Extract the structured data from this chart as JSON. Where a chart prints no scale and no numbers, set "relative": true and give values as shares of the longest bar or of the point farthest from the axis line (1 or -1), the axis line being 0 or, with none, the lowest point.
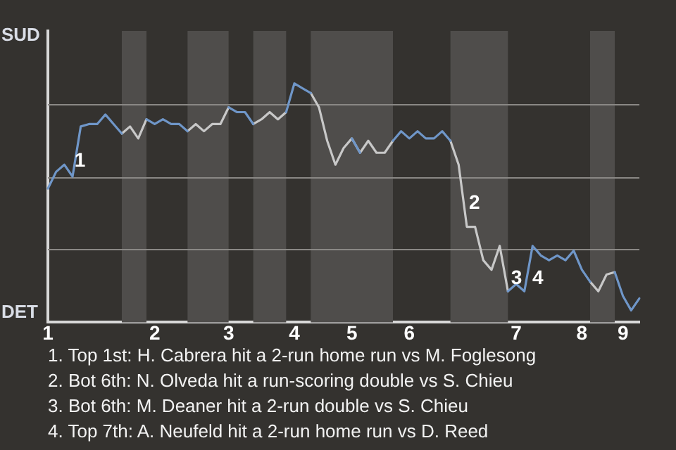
{
  "chart_data": {
    "type": "line",
    "relative": true,
    "categories": [
      "1",
      null,
      null,
      null,
      null,
      null,
      null,
      null,
      null,
      null,
      null,
      null,
      null,
      "2",
      null,
      null,
      null,
      null,
      null,
      null,
      null,
      null,
      "3",
      null,
      null,
      null,
      null,
      null,
      null,
      null,
      "4",
      null,
      null,
      null,
      null,
      null,
      null,
      "5",
      null,
      null,
      null,
      null,
      null,
      null,
      "6",
      null,
      null,
      null,
      null,
      null,
      null,
      null,
      null,
      null,
      null,
      null,
      null,
      "7",
      null,
      null,
      null,
      null,
      null,
      null,
      null,
      "8",
      null,
      null,
      null,
      null,
      "9",
      null,
      null
    ],
    "series": [
      {
        "color": "#6f96c8",
        "values": [
          0.56,
          0.63,
          0.66,
          0.61,
          0.82,
          0.83,
          0.83,
          0.87,
          0.83,
          0.79,
          null,
          null,
          0.85,
          0.83,
          0.85,
          0.83,
          0.83,
          0.8,
          null,
          null,
          null,
          null,
          0.9,
          0.88,
          0.88,
          0.83,
          null,
          null,
          null,
          0.88,
          1,
          0.98,
          0.96,
          null,
          null,
          null,
          null,
          0.77,
          0.71,
          null,
          null,
          null,
          0.76,
          0.8,
          0.77,
          0.8,
          0.77,
          0.77,
          0.8,
          0.76,
          null,
          null,
          null,
          null,
          null,
          null,
          0.13,
          0.16,
          0.13,
          0.32,
          0.28,
          0.26,
          0.28,
          0.26,
          0.3,
          0.22,
          0.17,
          null,
          null,
          0.21,
          0.11,
          0.05,
          0.1
        ]
      },
      {
        "color": "#c8c8c8",
        "values": [
          null,
          null,
          null,
          null,
          null,
          null,
          null,
          null,
          null,
          0.79,
          0.82,
          0.77,
          0.85,
          null,
          null,
          null,
          null,
          0.8,
          0.83,
          0.8,
          0.83,
          0.83,
          0.9,
          null,
          null,
          0.83,
          0.85,
          0.88,
          0.85,
          0.88,
          null,
          null,
          0.96,
          0.9,
          0.76,
          0.66,
          0.73,
          0.77,
          0.71,
          0.76,
          0.71,
          0.71,
          0.76,
          null,
          null,
          null,
          null,
          null,
          null,
          0.76,
          0.66,
          0.4,
          0.4,
          0.26,
          0.22,
          0.32,
          0.13,
          null,
          null,
          null,
          null,
          null,
          null,
          null,
          null,
          null,
          0.17,
          0.13,
          0.2,
          0.21,
          null,
          null,
          null
        ]
      }
    ],
    "grid": "y",
    "marker": "none",
    "line_style": "solid",
    "legend": false,
    "annotations": [
      "SUD",
      "DET",
      "1",
      "2",
      "3",
      "4",
      "1. Top 1st: H. Cabrera hit a 2-run home run vs M. Foglesong",
      "2. Bot 6th: N. Olveda hit a run-scoring double vs S. Chieu",
      "3. Bot 6th: M. Deaner hit a 2-run double vs S. Chieu",
      "4. Top 7th: A. Neufeld hit a 2-run home run vs D. Reed"
    ]
  }
}
